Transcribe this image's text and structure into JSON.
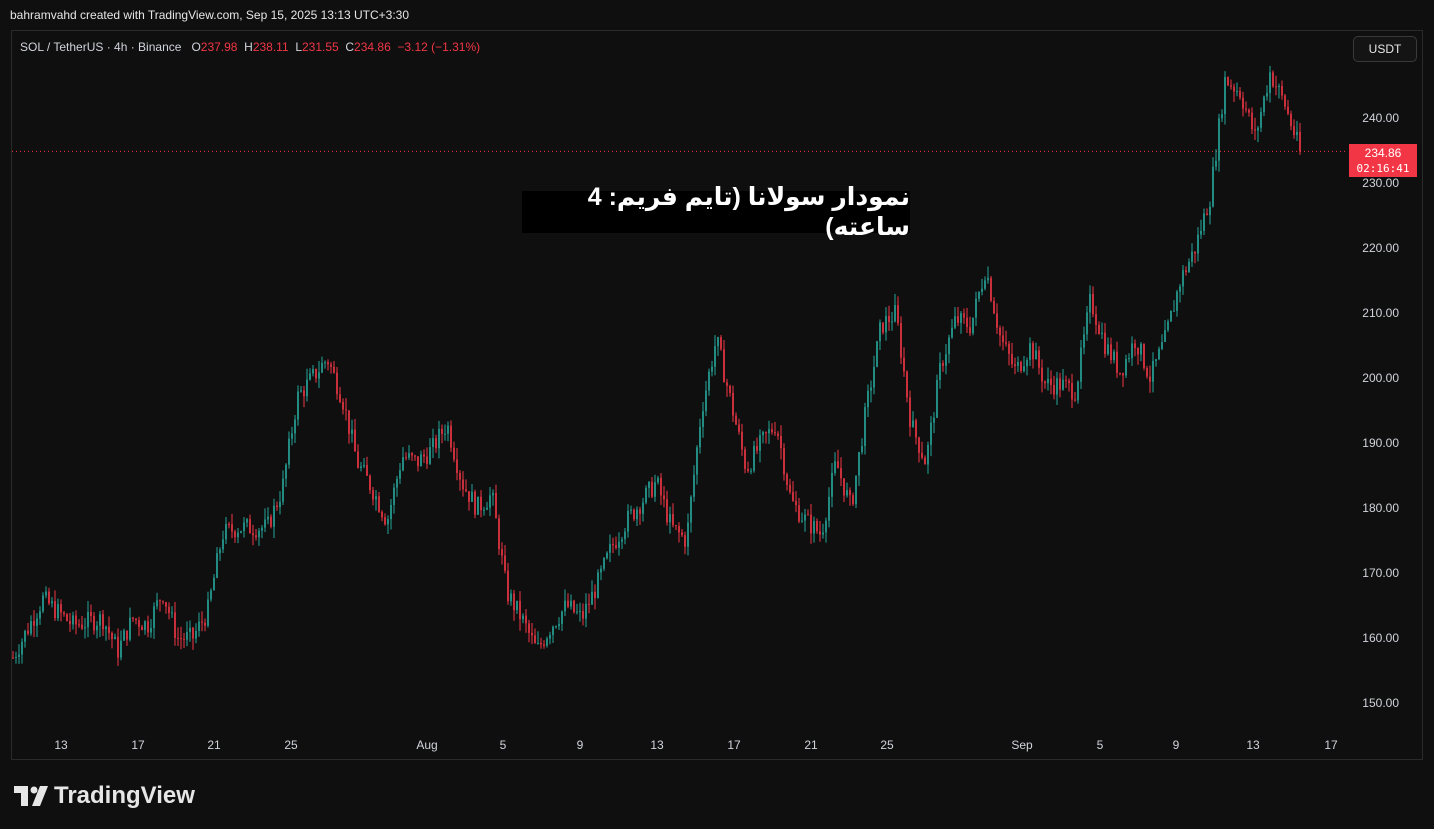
{
  "header": {
    "author_line": "bahramvahd created with TradingView.com, Sep 15, 2025 13:13 UTC+3:30"
  },
  "legend": {
    "symbol": "SOL / TetherUS · 4h · Binance",
    "open_label": "O",
    "open": "237.98",
    "high_label": "H",
    "high": "238.11",
    "low_label": "L",
    "low": "231.55",
    "close_label": "C",
    "close": "234.86",
    "change": "−3.12 (−1.31%)"
  },
  "currency_button": "USDT",
  "overlay_title": "نمودار سولانا (تایم فریم: 4 ساعته)",
  "price_tag": {
    "price": "234.86",
    "countdown": "02:16:41"
  },
  "brand": "TradingView",
  "colors": {
    "up": "#26a69a",
    "down": "#f23645",
    "background": "#0f0f0f"
  },
  "chart_data": {
    "type": "candlestick",
    "timeframe": "4h",
    "y_ticks": [
      150,
      160,
      170,
      180,
      190,
      200,
      210,
      220,
      230,
      240
    ],
    "y_range": [
      145,
      255
    ],
    "x_ticks": [
      "13",
      "17",
      "21",
      "25",
      "Aug",
      "5",
      "9",
      "13",
      "17",
      "21",
      "25",
      "Sep",
      "5",
      "9",
      "13",
      "17"
    ],
    "current_price": 234.86,
    "price_path": [
      [
        0,
        157
      ],
      [
        2,
        166
      ],
      [
        4,
        162
      ],
      [
        6,
        163
      ],
      [
        7,
        158
      ],
      [
        8,
        163
      ],
      [
        9,
        162
      ],
      [
        10,
        167
      ],
      [
        11,
        160
      ],
      [
        12,
        160
      ],
      [
        13,
        164
      ],
      [
        14,
        176
      ],
      [
        15,
        177
      ],
      [
        16,
        177
      ],
      [
        17,
        177
      ],
      [
        18,
        183
      ],
      [
        19,
        197
      ],
      [
        20,
        200
      ],
      [
        21,
        203
      ],
      [
        22,
        197
      ],
      [
        23,
        187
      ],
      [
        24,
        183
      ],
      [
        25,
        178
      ],
      [
        26,
        188
      ],
      [
        27,
        187
      ],
      [
        28,
        189
      ],
      [
        29,
        193
      ],
      [
        30,
        184
      ],
      [
        31,
        180
      ],
      [
        32,
        182
      ],
      [
        33,
        167
      ],
      [
        34,
        163
      ],
      [
        35,
        158
      ],
      [
        36,
        162
      ],
      [
        37,
        165
      ],
      [
        38,
        163
      ],
      [
        39,
        168
      ],
      [
        40,
        174
      ],
      [
        41,
        178
      ],
      [
        42,
        181
      ],
      [
        43,
        184
      ],
      [
        44,
        177
      ],
      [
        45,
        175
      ],
      [
        46,
        195
      ],
      [
        47,
        206
      ],
      [
        48,
        196
      ],
      [
        49,
        186
      ],
      [
        50,
        190
      ],
      [
        51,
        193
      ],
      [
        52,
        181
      ],
      [
        53,
        178
      ],
      [
        54,
        176
      ],
      [
        55,
        187
      ],
      [
        56,
        180
      ],
      [
        57,
        195
      ],
      [
        58,
        208
      ],
      [
        59,
        210
      ],
      [
        60,
        193
      ],
      [
        61,
        187
      ],
      [
        62,
        202
      ],
      [
        63,
        209
      ],
      [
        64,
        208
      ],
      [
        65,
        217
      ],
      [
        66,
        206
      ],
      [
        67,
        201
      ],
      [
        68,
        205
      ],
      [
        69,
        199
      ],
      [
        70,
        199
      ],
      [
        71,
        198
      ],
      [
        72,
        212
      ],
      [
        73,
        205
      ],
      [
        74,
        201
      ],
      [
        75,
        206
      ],
      [
        76,
        200
      ],
      [
        77,
        206
      ],
      [
        78,
        215
      ],
      [
        79,
        220
      ],
      [
        80,
        228
      ],
      [
        81,
        246
      ],
      [
        82,
        244
      ],
      [
        83,
        237
      ],
      [
        84,
        247
      ],
      [
        85,
        242
      ],
      [
        86,
        234.86
      ]
    ]
  }
}
